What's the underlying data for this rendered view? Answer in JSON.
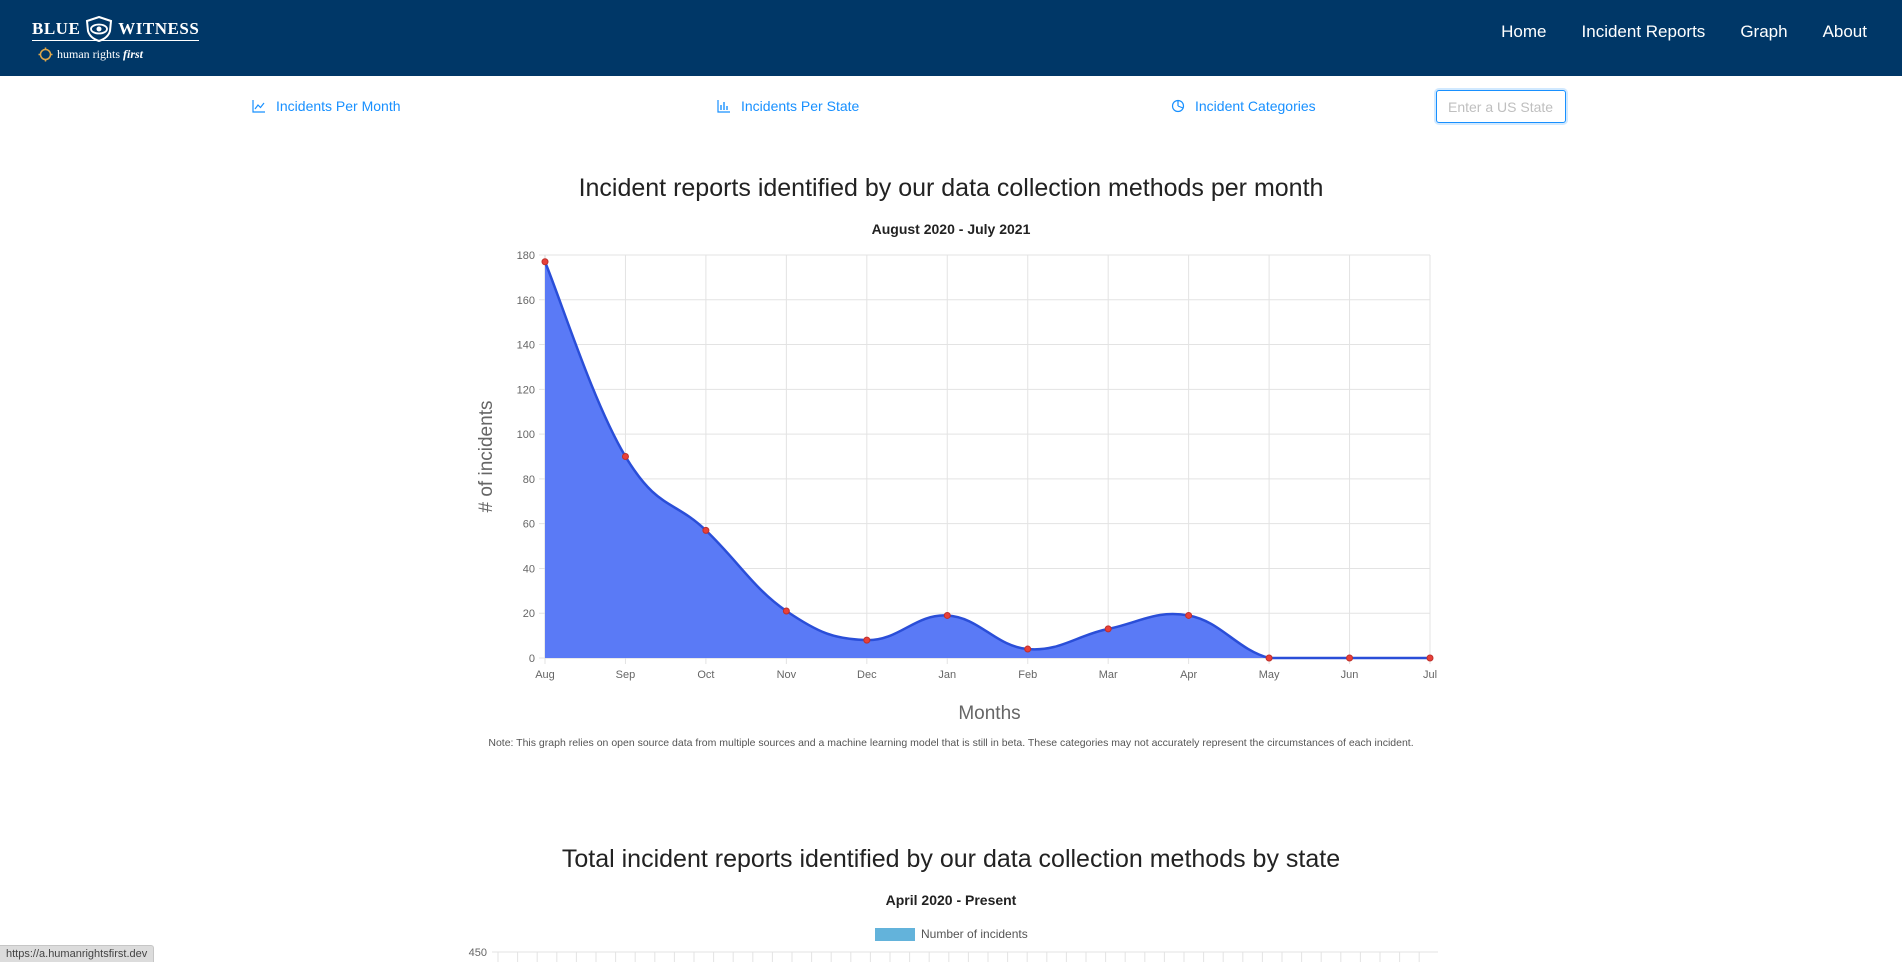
{
  "header": {
    "logo": {
      "word_left": "BLUE",
      "word_right": "WITNESS",
      "org_name": "human rights",
      "org_name_italic": "first"
    },
    "nav": [
      {
        "label": "Home"
      },
      {
        "label": "Incident Reports"
      },
      {
        "label": "Graph"
      },
      {
        "label": "About"
      }
    ]
  },
  "subnav": {
    "tabs": [
      {
        "label": "Incidents Per Month",
        "icon": "line-chart-icon"
      },
      {
        "label": "Incidents Per State",
        "icon": "bar-chart-icon"
      },
      {
        "label": "Incident Categories",
        "icon": "pie-chart-icon"
      }
    ],
    "state_input": {
      "placeholder": "Enter a US State",
      "value": ""
    }
  },
  "colors": {
    "navbar": "#003767",
    "link": "#1890ff",
    "area_fill": "#5a7af6",
    "line": "#2a4ed8",
    "point": "#e8403a",
    "bar": "#63b3db"
  },
  "chart1": {
    "title": "Incident reports identified by our data collection methods per month",
    "subtitle": "August 2020 - July 2021",
    "note": "Note: This graph relies on open source data from multiple sources and a machine learning model that is still in beta. These categories may not accurately represent the circumstances of each incident."
  },
  "chart2": {
    "title": "Total incident reports identified by our data collection methods by state",
    "subtitle": "April 2020 - Present",
    "legend_label": "Number of incidents",
    "y_top_tick": "450"
  },
  "chart_data": [
    {
      "type": "area",
      "title": "Incident reports identified by our data collection methods per month",
      "subtitle": "August 2020 - July 2021",
      "xlabel": "Months",
      "ylabel": "# of incidents",
      "categories": [
        "Aug",
        "Sep",
        "Oct",
        "Nov",
        "Dec",
        "Jan",
        "Feb",
        "Mar",
        "Apr",
        "May",
        "Jun",
        "Jul"
      ],
      "series": [
        {
          "values": [
            177,
            90,
            57,
            21,
            8,
            19,
            4,
            13,
            19,
            0,
            0,
            0
          ]
        }
      ],
      "yticks": [
        0,
        20,
        40,
        60,
        80,
        100,
        120,
        140,
        160,
        180
      ],
      "ylim": [
        0,
        180
      ],
      "grid": true
    },
    {
      "type": "bar",
      "title": "Total incident reports identified by our data collection methods by state",
      "subtitle": "April 2020 - Present",
      "series": [
        {
          "name": "Number of incidents"
        }
      ],
      "yticks": [
        450
      ],
      "legend": "top"
    }
  ],
  "status_url": "https://a.humanrightsfirst.dev"
}
